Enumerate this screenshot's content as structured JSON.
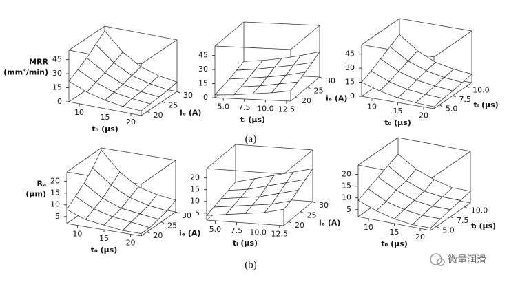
{
  "chart_data": [
    {
      "type": "surface",
      "zlabel": [
        "MRR",
        "(mm³/min)"
      ],
      "xlabel": "t₀ (μs)",
      "ylabel": "iₑ (A)",
      "xlim": [
        8,
        22
      ],
      "xticks": [
        10,
        15,
        20
      ],
      "ylim": [
        18,
        30
      ],
      "yticks": [
        20,
        25,
        30
      ],
      "zlim": [
        0,
        55
      ],
      "zticks": [
        0,
        15,
        30,
        45
      ],
      "x": [
        8,
        11.5,
        15,
        18.5,
        22
      ],
      "y": [
        18,
        21,
        24,
        27,
        30
      ],
      "z": [
        [
          22,
          14,
          9,
          6,
          5
        ],
        [
          28,
          18,
          11,
          8,
          6
        ],
        [
          34,
          22,
          13,
          9,
          7
        ],
        [
          42,
          26,
          16,
          11,
          8
        ],
        [
          50,
          31,
          19,
          13,
          10
        ]
      ]
    },
    {
      "type": "surface",
      "xlabel": "tᵢ (μs)",
      "ylabel": "iₑ (A)",
      "xlim": [
        4,
        13
      ],
      "xticks": [
        {
          "value": 5,
          "label": "5.0"
        },
        7.5,
        {
          "value": 10,
          "label": "10.0"
        },
        12.5
      ],
      "ylim": [
        18,
        30
      ],
      "yticks": [
        20,
        25,
        30
      ],
      "zlim": [
        0,
        55
      ],
      "zticks": [
        0,
        15,
        30,
        45
      ],
      "x": [
        4,
        6.25,
        8.5,
        10.75,
        13
      ],
      "y": [
        18,
        21,
        24,
        27,
        30
      ],
      "z": [
        [
          3,
          4,
          6,
          8,
          11
        ],
        [
          5,
          6,
          8,
          11,
          14
        ],
        [
          7,
          9,
          11,
          14,
          18
        ],
        [
          10,
          12,
          15,
          18,
          22
        ],
        [
          13,
          15,
          18,
          22,
          27
        ]
      ]
    },
    {
      "type": "surface",
      "xlabel": "t₀ (μs)",
      "ylabel": "tᵢ (μs)",
      "xlim": [
        8,
        22
      ],
      "xticks": [
        10,
        15,
        20
      ],
      "ylim": [
        4,
        11
      ],
      "yticks": [
        {
          "value": 5,
          "label": "5.0"
        },
        7.5,
        {
          "value": 10,
          "label": "10.0"
        }
      ],
      "zlim": [
        0,
        55
      ],
      "zticks": [
        0,
        15,
        30,
        45
      ],
      "x": [
        8,
        11.5,
        15,
        18.5,
        22
      ],
      "y": [
        4,
        5.75,
        7.5,
        9.25,
        11
      ],
      "z": [
        [
          15,
          9,
          5,
          3,
          2
        ],
        [
          20,
          12,
          7,
          5,
          4
        ],
        [
          26,
          16,
          10,
          7,
          5
        ],
        [
          32,
          20,
          13,
          9,
          7
        ],
        [
          38,
          24,
          15,
          11,
          9
        ]
      ]
    },
    {
      "type": "surface",
      "zlabel": [
        "Rₐ",
        "(μm)"
      ],
      "xlabel": "t₀ (μs)",
      "ylabel": "iₑ (A)",
      "xlim": [
        8,
        22
      ],
      "xticks": [
        10,
        15,
        20
      ],
      "ylim": [
        18,
        30
      ],
      "yticks": [
        20,
        25,
        30
      ],
      "zlim": [
        2,
        24
      ],
      "zticks": [
        5,
        10,
        15,
        20
      ],
      "x": [
        8,
        11.5,
        15,
        18.5,
        22
      ],
      "y": [
        18,
        21,
        24,
        27,
        30
      ],
      "z": [
        [
          8,
          5,
          4,
          3,
          3
        ],
        [
          11,
          7,
          5,
          4,
          3
        ],
        [
          14,
          9,
          6,
          5,
          4
        ],
        [
          18,
          12,
          8,
          6,
          5
        ],
        [
          23,
          15,
          10,
          8,
          7
        ]
      ]
    },
    {
      "type": "surface",
      "xlabel": "tᵢ (μs)",
      "ylabel": "iₑ (A)",
      "xlim": [
        4,
        13
      ],
      "xticks": [
        {
          "value": 5,
          "label": "5.0"
        },
        7.5,
        {
          "value": 10,
          "label": "10.0"
        },
        12.5
      ],
      "ylim": [
        18,
        30
      ],
      "yticks": [
        20,
        25,
        30
      ],
      "zlim": [
        2,
        24
      ],
      "zticks": [
        5,
        10,
        15,
        20
      ],
      "x": [
        4,
        6.25,
        8.5,
        10.75,
        13
      ],
      "y": [
        18,
        21,
        24,
        27,
        30
      ],
      "z": [
        [
          4,
          5,
          6,
          7,
          9
        ],
        [
          5,
          6,
          7,
          8,
          10
        ],
        [
          6,
          7,
          8,
          10,
          12
        ],
        [
          7,
          8,
          10,
          12,
          14
        ],
        [
          8,
          10,
          12,
          14,
          16
        ]
      ]
    },
    {
      "type": "surface",
      "xlabel": "t₀ (μs)",
      "ylabel": "tᵢ (μs)",
      "xlim": [
        8,
        22
      ],
      "xticks": [
        10,
        15,
        20
      ],
      "ylim": [
        4,
        11
      ],
      "yticks": [
        {
          "value": 5,
          "label": "5.0"
        },
        7.5,
        {
          "value": 10,
          "label": "10.0"
        }
      ],
      "zlim": [
        2,
        24
      ],
      "zticks": [
        5,
        10,
        15,
        20
      ],
      "x": [
        8,
        11.5,
        15,
        18.5,
        22
      ],
      "y": [
        4,
        5.75,
        7.5,
        9.25,
        11
      ],
      "z": [
        [
          9,
          6,
          4,
          3,
          3
        ],
        [
          11,
          7,
          5,
          4,
          4
        ],
        [
          13,
          9,
          6,
          5,
          5
        ],
        [
          15,
          10,
          7,
          6,
          6
        ],
        [
          17,
          12,
          9,
          7,
          7
        ]
      ]
    }
  ],
  "captions": [
    "(a)",
    "(b)"
  ],
  "watermark": "微量润滑"
}
